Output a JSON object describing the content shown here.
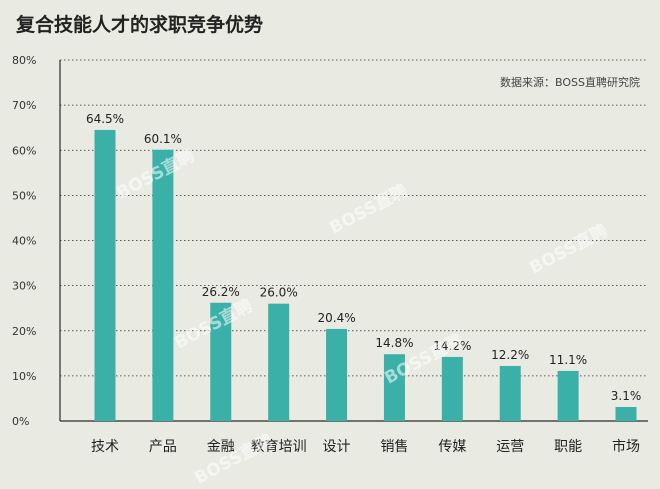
{
  "title": "复合技能人才的求职竞争优势",
  "source": "数据来源：BOSS直聘研究院",
  "watermark": "BOSS直聘",
  "colors": {
    "bar": "#3ab0a8",
    "background": "#e9ebe2",
    "grid": "#2a2a2a",
    "text": "#222222"
  },
  "chart_data": {
    "type": "bar",
    "title": "复合技能人才的求职竞争优势",
    "xlabel": "",
    "ylabel": "",
    "categories": [
      "技术",
      "产品",
      "金融",
      "教育培训",
      "设计",
      "销售",
      "传媒",
      "运营",
      "职能",
      "市场"
    ],
    "values": [
      64.5,
      60.1,
      26.2,
      26.0,
      20.4,
      14.8,
      14.2,
      12.2,
      11.1,
      3.1
    ],
    "value_labels": [
      "64.5%",
      "60.1%",
      "26.2%",
      "26.0%",
      "20.4%",
      "14.8%",
      "14.2%",
      "12.2%",
      "11.1%",
      "3.1%"
    ],
    "ylim": [
      0,
      80
    ],
    "yticks": [
      0,
      10,
      20,
      30,
      40,
      50,
      60,
      70,
      80
    ],
    "ytick_labels": [
      "0%",
      "10%",
      "20%",
      "30%",
      "40%",
      "50%",
      "60%",
      "70%",
      "80%"
    ],
    "grid": true,
    "legend": "none"
  }
}
